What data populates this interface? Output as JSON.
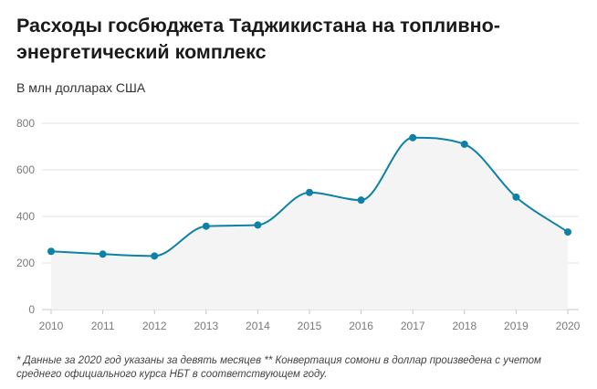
{
  "header": {
    "title": "Расходы госбюджета Таджикистана на топливно-энергетический комплекс",
    "subtitle": "В млн долларах США"
  },
  "footnote": "* Данные за 2020 год указаны за девять месяцев ** Конвертация сомони в доллар произведена с учетом среднего официального курса НБТ в соответствующем году.",
  "colors": {
    "line": "#0e82a6",
    "area": "#f4f4f4",
    "grid": "#e2e2e2",
    "axis": "#c8c8c8"
  },
  "chart_data": {
    "type": "area",
    "title": "Расходы госбюджета Таджикистана на топливно-энергетический комплекс",
    "subtitle": "В млн долларах США",
    "x": [
      "2010",
      "2011",
      "2012",
      "2013",
      "2014",
      "2015",
      "2016",
      "2017",
      "2018",
      "2019",
      "2020"
    ],
    "series": [
      {
        "values": [
          250,
          238,
          230,
          358,
          363,
          503,
          470,
          738,
          710,
          483,
          333
        ]
      }
    ],
    "ylim": [
      0,
      800
    ],
    "yticks": [
      0,
      200,
      400,
      600,
      800
    ],
    "grid": true,
    "smooth": true,
    "markers": true
  }
}
